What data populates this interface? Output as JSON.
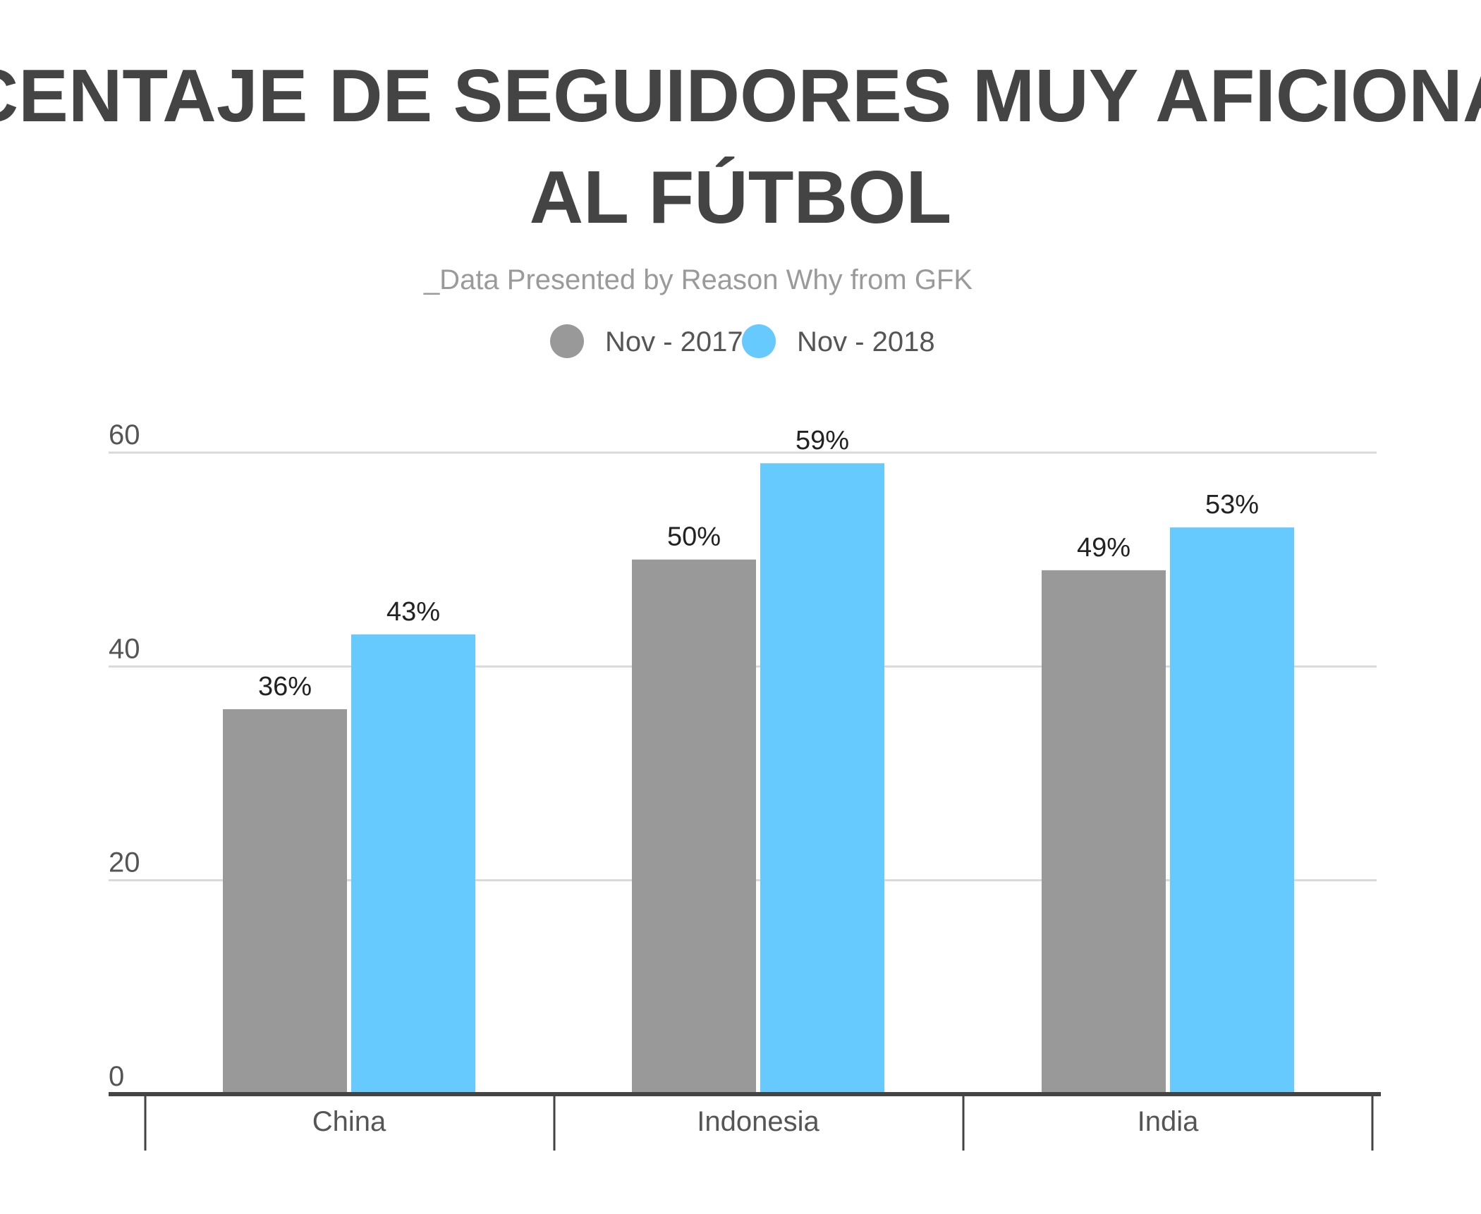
{
  "title_line1": "PORCENTAJE DE SEGUIDORES MUY AFICIONADOS",
  "title_line2": "AL FÚTBOL",
  "subtitle": "_Data Presented by Reason Why from GFK",
  "colors": {
    "series_2017": "#999999",
    "series_2018": "#66CAFE",
    "title": "#444444",
    "subtitle": "#9A9A9A",
    "grid": "#D9D9D9"
  },
  "chart_data": {
    "type": "bar",
    "title": "PORCENTAJE DE SEGUIDORES MUY AFICIONADOS AL FÚTBOL",
    "subtitle": "_Data Presented by Reason Why from GFK",
    "categories": [
      "China",
      "Indonesia",
      "India"
    ],
    "series": [
      {
        "name": "Nov - 2017",
        "values": [
          36,
          50,
          49
        ],
        "labels": [
          "36%",
          "50%",
          "49%"
        ],
        "color": "#999999"
      },
      {
        "name": "Nov - 2018",
        "values": [
          43,
          59,
          53
        ],
        "labels": [
          "43%",
          "59%",
          "53%"
        ],
        "color": "#66CAFE"
      }
    ],
    "yticks": [
      "0",
      "20",
      "40",
      "60"
    ],
    "ylim": [
      0,
      60
    ],
    "grid": true,
    "legend_position": "top-center",
    "xlabel": "",
    "ylabel": ""
  }
}
